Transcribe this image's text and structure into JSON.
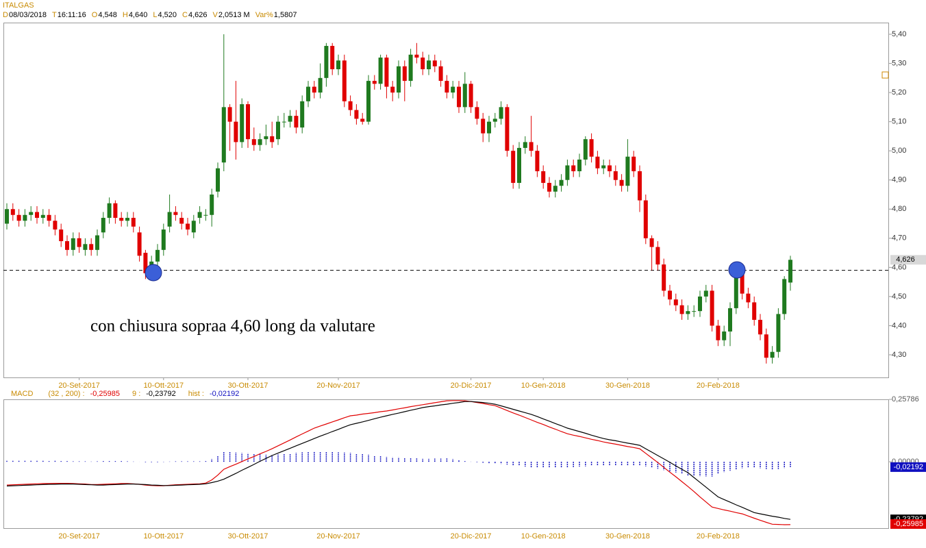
{
  "header": {
    "name": "ITALGAS",
    "fields": [
      {
        "label": "D",
        "value": "08/03/2018"
      },
      {
        "label": "T",
        "value": "16:11:16"
      },
      {
        "label": "O",
        "value": "4,548"
      },
      {
        "label": "H",
        "value": "4,640"
      },
      {
        "label": "L",
        "value": "4,520"
      },
      {
        "label": "C",
        "value": "4,626"
      },
      {
        "label": "V",
        "value": "2,0513 M"
      },
      {
        "label": "Var%",
        "value": "1,5807"
      }
    ]
  },
  "chart_data": [
    {
      "type": "candlestick",
      "up_color": "#1f7a1f",
      "down_color": "#e00000",
      "annotation": "con chiusura sopraa 4,60 long da valutare",
      "hline": 4.59,
      "ylim": [
        4.22,
        5.44
      ],
      "yticks": [
        {
          "value": 4.3,
          "label": "4,30"
        },
        {
          "value": 4.4,
          "label": "4,40"
        },
        {
          "value": 4.5,
          "label": "4,50"
        },
        {
          "value": 4.6,
          "label": "4,60"
        },
        {
          "value": 4.7,
          "label": "4,70"
        },
        {
          "value": 4.8,
          "label": "4,80"
        },
        {
          "value": 4.9,
          "label": "4,90"
        },
        {
          "value": 5.0,
          "label": "5,00"
        },
        {
          "value": 5.1,
          "label": "5,10"
        },
        {
          "value": 5.2,
          "label": "5,20"
        },
        {
          "value": 5.3,
          "label": "5,30"
        },
        {
          "value": 5.4,
          "label": "5,40"
        }
      ],
      "xticks": [
        {
          "value": 12,
          "label": "20-Set-2017"
        },
        {
          "value": 26,
          "label": "10-Ott-2017"
        },
        {
          "value": 40,
          "label": "30-Ott-2017"
        },
        {
          "value": 55,
          "label": "20-Nov-2017"
        },
        {
          "value": 77,
          "label": "20-Dic-2017"
        },
        {
          "value": 89,
          "label": "10-Gen-2018"
        },
        {
          "value": 103,
          "label": "30-Gen-2018"
        },
        {
          "value": 118,
          "label": "20-Feb-2018"
        }
      ],
      "open": [
        4.75,
        4.8,
        4.78,
        4.76,
        4.78,
        4.79,
        4.77,
        4.78,
        4.76,
        4.73,
        4.69,
        4.66,
        4.7,
        4.66,
        4.68,
        4.66,
        4.72,
        4.77,
        4.82,
        4.77,
        4.76,
        4.77,
        4.72,
        4.65,
        4.58,
        4.62,
        4.66,
        4.74,
        4.79,
        4.77,
        4.75,
        4.72,
        4.77,
        4.78,
        4.78,
        4.86,
        4.96,
        5.15,
        5.1,
        5.03,
        5.16,
        5.04,
        5.02,
        5.04,
        5.05,
        5.04,
        5.1,
        5.1,
        5.12,
        5.08,
        5.17,
        5.22,
        5.2,
        5.25,
        5.36,
        5.28,
        5.31,
        5.17,
        5.14,
        5.11,
        5.1,
        5.24,
        5.23,
        5.32,
        5.22,
        5.2,
        5.29,
        5.24,
        5.33,
        5.32,
        5.28,
        5.31,
        5.29,
        5.24,
        5.2,
        5.22,
        5.15,
        5.23,
        5.15,
        5.11,
        5.06,
        5.1,
        5.11,
        5.15,
        5.0,
        4.89,
        5.01,
        5.03,
        5.0,
        4.93,
        4.89,
        4.86,
        4.88,
        4.9,
        4.95,
        4.93,
        4.97,
        5.04,
        4.98,
        4.94,
        4.95,
        4.93,
        4.9,
        4.88,
        4.98,
        4.93,
        4.83,
        4.7,
        4.67,
        4.61,
        4.52,
        4.49,
        4.47,
        4.44,
        4.45,
        4.45,
        4.5,
        4.52,
        4.4,
        4.35,
        4.38,
        4.46,
        4.59,
        4.51,
        4.48,
        4.42,
        4.37,
        4.29,
        4.31,
        4.44,
        4.548
      ],
      "high": [
        4.82,
        4.82,
        4.8,
        4.8,
        4.81,
        4.81,
        4.8,
        4.8,
        4.78,
        4.75,
        4.71,
        4.72,
        4.72,
        4.7,
        4.7,
        4.73,
        4.79,
        4.84,
        4.83,
        4.79,
        4.79,
        4.79,
        4.74,
        4.66,
        4.64,
        4.68,
        4.75,
        4.85,
        4.81,
        4.79,
        4.77,
        4.78,
        4.81,
        4.8,
        4.87,
        4.96,
        5.4,
        5.16,
        5.24,
        5.18,
        5.17,
        5.08,
        5.06,
        5.09,
        5.1,
        5.12,
        5.13,
        5.14,
        5.14,
        5.19,
        5.24,
        5.24,
        5.3,
        5.37,
        5.37,
        5.33,
        5.33,
        5.19,
        5.16,
        5.13,
        5.26,
        5.26,
        5.33,
        5.33,
        5.24,
        5.31,
        5.31,
        5.35,
        5.37,
        5.34,
        5.33,
        5.33,
        5.31,
        5.26,
        5.24,
        5.24,
        5.27,
        5.24,
        5.17,
        5.13,
        5.12,
        5.13,
        5.17,
        5.16,
        5.02,
        5.03,
        5.05,
        5.12,
        5.02,
        4.95,
        4.91,
        4.9,
        4.92,
        4.97,
        4.97,
        4.99,
        5.05,
        5.06,
        5.0,
        4.97,
        4.97,
        4.95,
        4.92,
        5.04,
        5.0,
        4.95,
        4.85,
        4.71,
        4.69,
        4.63,
        4.54,
        4.51,
        4.49,
        4.47,
        4.47,
        4.52,
        4.54,
        4.54,
        4.42,
        4.4,
        4.48,
        4.6,
        4.6,
        4.53,
        4.5,
        4.44,
        4.39,
        4.33,
        4.46,
        4.57,
        4.64
      ],
      "low": [
        4.73,
        4.76,
        4.74,
        4.74,
        4.76,
        4.75,
        4.75,
        4.74,
        4.71,
        4.67,
        4.64,
        4.64,
        4.65,
        4.64,
        4.64,
        4.64,
        4.7,
        4.75,
        4.75,
        4.74,
        4.74,
        4.72,
        4.62,
        4.56,
        4.56,
        4.6,
        4.64,
        4.72,
        4.76,
        4.73,
        4.71,
        4.7,
        4.75,
        4.76,
        4.74,
        4.84,
        4.93,
        5.0,
        4.97,
        5.01,
        5.01,
        5.0,
        5.0,
        5.02,
        5.01,
        5.02,
        5.08,
        5.08,
        5.06,
        5.06,
        5.15,
        5.18,
        5.18,
        5.22,
        5.26,
        5.26,
        5.15,
        5.12,
        5.09,
        5.09,
        5.09,
        5.21,
        5.21,
        5.18,
        5.17,
        5.18,
        5.17,
        5.22,
        5.3,
        5.26,
        5.26,
        5.27,
        5.22,
        5.18,
        5.18,
        5.13,
        5.13,
        5.13,
        5.09,
        5.03,
        5.03,
        5.08,
        5.09,
        4.98,
        4.87,
        4.87,
        4.99,
        4.98,
        4.91,
        4.87,
        4.84,
        4.84,
        4.86,
        4.88,
        4.91,
        4.91,
        4.95,
        4.96,
        4.92,
        4.92,
        4.91,
        4.88,
        4.86,
        4.86,
        4.91,
        4.79,
        4.68,
        4.59,
        4.59,
        4.5,
        4.47,
        4.45,
        4.42,
        4.42,
        4.43,
        4.43,
        4.48,
        4.38,
        4.33,
        4.33,
        4.33,
        4.44,
        4.49,
        4.46,
        4.4,
        4.35,
        4.27,
        4.27,
        4.29,
        4.42,
        4.52
      ],
      "close": [
        4.8,
        4.78,
        4.76,
        4.78,
        4.79,
        4.77,
        4.78,
        4.76,
        4.73,
        4.69,
        4.66,
        4.7,
        4.67,
        4.68,
        4.66,
        4.71,
        4.77,
        4.82,
        4.77,
        4.76,
        4.77,
        4.74,
        4.64,
        4.58,
        4.62,
        4.66,
        4.73,
        4.79,
        4.78,
        4.75,
        4.73,
        4.76,
        4.79,
        4.78,
        4.85,
        4.94,
        5.15,
        5.1,
        5.03,
        5.16,
        5.04,
        5.02,
        5.04,
        5.05,
        5.03,
        5.1,
        5.1,
        5.12,
        5.08,
        5.17,
        5.22,
        5.2,
        5.25,
        5.36,
        5.28,
        5.31,
        5.17,
        5.14,
        5.11,
        5.1,
        5.24,
        5.23,
        5.32,
        5.22,
        5.2,
        5.29,
        5.24,
        5.33,
        5.32,
        5.28,
        5.31,
        5.29,
        5.24,
        5.2,
        5.22,
        5.15,
        5.23,
        5.15,
        5.11,
        5.06,
        5.1,
        5.11,
        5.15,
        5.0,
        4.89,
        5.01,
        5.03,
        5.0,
        4.93,
        4.89,
        4.86,
        4.88,
        4.9,
        4.95,
        4.93,
        4.97,
        5.04,
        4.98,
        4.94,
        4.95,
        4.93,
        4.9,
        4.88,
        4.98,
        4.93,
        4.83,
        4.7,
        4.67,
        4.61,
        4.52,
        4.49,
        4.47,
        4.44,
        4.45,
        4.45,
        4.5,
        4.52,
        4.4,
        4.35,
        4.38,
        4.46,
        4.59,
        4.51,
        4.48,
        4.42,
        4.37,
        4.29,
        4.31,
        4.44,
        4.56,
        4.626
      ]
    },
    {
      "type": "macd",
      "title": "MACD",
      "ylim": [
        -0.277,
        0.258
      ],
      "yticks": [
        {
          "value": 0.25786,
          "label": "0,25786"
        },
        {
          "value": 0,
          "label": "0,00000"
        }
      ],
      "series": [
        {
          "name": "(32 , 200) :",
          "color": "#e00000",
          "style": "line",
          "last_label": "-0,25985",
          "values": [
            -0.096,
            -0.095,
            -0.094,
            -0.093,
            -0.092,
            -0.091,
            -0.09,
            -0.09,
            -0.089,
            -0.089,
            -0.089,
            -0.09,
            -0.091,
            -0.092,
            -0.094,
            -0.094,
            -0.093,
            -0.092,
            -0.091,
            -0.09,
            -0.09,
            -0.091,
            -0.093,
            -0.096,
            -0.098,
            -0.099,
            -0.099,
            -0.097,
            -0.095,
            -0.094,
            -0.093,
            -0.092,
            -0.091,
            -0.088,
            -0.075,
            -0.055,
            -0.031,
            -0.02,
            -0.01,
            0.001,
            0.012,
            0.022,
            0.033,
            0.043,
            0.054,
            0.066,
            0.078,
            0.09,
            0.103,
            0.115,
            0.127,
            0.139,
            0.148,
            0.156,
            0.165,
            0.173,
            0.182,
            0.19,
            0.193,
            0.197,
            0.2,
            0.203,
            0.207,
            0.21,
            0.214,
            0.219,
            0.223,
            0.228,
            0.232,
            0.236,
            0.24,
            0.244,
            0.248,
            0.252,
            0.253,
            0.253,
            0.252,
            0.249,
            0.245,
            0.241,
            0.236,
            0.232,
            0.222,
            0.212,
            0.202,
            0.193,
            0.183,
            0.173,
            0.163,
            0.154,
            0.144,
            0.135,
            0.125,
            0.116,
            0.11,
            0.105,
            0.099,
            0.093,
            0.088,
            0.082,
            0.077,
            0.073,
            0.068,
            0.063,
            0.059,
            0.054,
            0.035,
            0.016,
            -0.003,
            -0.023,
            -0.043,
            -0.062,
            -0.082,
            -0.102,
            -0.123,
            -0.145,
            -0.166,
            -0.187,
            -0.193,
            -0.199,
            -0.204,
            -0.21,
            -0.215,
            -0.224,
            -0.233,
            -0.242,
            -0.25,
            -0.258,
            -0.259,
            -0.26,
            -0.25985
          ]
        },
        {
          "name": "9 :",
          "color": "#000000",
          "style": "line",
          "last_label": "-0,23792",
          "values": [
            -0.1,
            -0.099,
            -0.098,
            -0.097,
            -0.096,
            -0.095,
            -0.094,
            -0.093,
            -0.093,
            -0.092,
            -0.092,
            -0.092,
            -0.093,
            -0.094,
            -0.095,
            -0.096,
            -0.096,
            -0.095,
            -0.094,
            -0.093,
            -0.092,
            -0.092,
            -0.093,
            -0.094,
            -0.096,
            -0.097,
            -0.098,
            -0.098,
            -0.097,
            -0.096,
            -0.095,
            -0.094,
            -0.093,
            -0.091,
            -0.086,
            -0.08,
            -0.072,
            -0.06,
            -0.048,
            -0.035,
            -0.023,
            -0.011,
            0.002,
            0.014,
            0.026,
            0.036,
            0.046,
            0.056,
            0.066,
            0.076,
            0.086,
            0.096,
            0.106,
            0.115,
            0.125,
            0.134,
            0.144,
            0.153,
            0.159,
            0.165,
            0.171,
            0.178,
            0.184,
            0.19,
            0.196,
            0.201,
            0.207,
            0.213,
            0.218,
            0.224,
            0.228,
            0.231,
            0.235,
            0.238,
            0.242,
            0.245,
            0.249,
            0.249,
            0.247,
            0.245,
            0.242,
            0.238,
            0.231,
            0.224,
            0.217,
            0.21,
            0.203,
            0.196,
            0.187,
            0.177,
            0.168,
            0.158,
            0.149,
            0.139,
            0.132,
            0.125,
            0.118,
            0.11,
            0.103,
            0.096,
            0.091,
            0.087,
            0.082,
            0.077,
            0.073,
            0.068,
            0.054,
            0.04,
            0.026,
            0.012,
            -0.002,
            -0.017,
            -0.031,
            -0.045,
            -0.065,
            -0.085,
            -0.105,
            -0.125,
            -0.145,
            -0.156,
            -0.167,
            -0.178,
            -0.188,
            -0.199,
            -0.21,
            -0.215,
            -0.22,
            -0.225,
            -0.229,
            -0.234,
            -0.23792
          ]
        },
        {
          "name": "hist :",
          "color": "#1010c0",
          "style": "histogram",
          "last_label": "-0,02192",
          "values": [
            0.004,
            0.004,
            0.004,
            0.004,
            0.004,
            0.004,
            0.004,
            0.003,
            0.004,
            0.003,
            0.003,
            0.002,
            0.002,
            0.002,
            0.001,
            0.002,
            0.003,
            0.003,
            0.003,
            0.003,
            0.002,
            0.001,
            0,
            -0.002,
            -0.002,
            -0.002,
            -0.001,
            0.001,
            0.002,
            0.002,
            0.002,
            0.002,
            0.002,
            0.003,
            0.011,
            0.025,
            0.041,
            0.04,
            0.038,
            0.036,
            0.035,
            0.033,
            0.031,
            0.029,
            0.028,
            0.03,
            0.032,
            0.034,
            0.037,
            0.039,
            0.041,
            0.043,
            0.042,
            0.041,
            0.04,
            0.039,
            0.038,
            0.037,
            0.034,
            0.032,
            0.029,
            0.025,
            0.023,
            0.02,
            0.018,
            0.018,
            0.016,
            0.015,
            0.014,
            0.012,
            0.012,
            0.013,
            0.013,
            0.014,
            0.011,
            0.008,
            0.003,
            0,
            -0.002,
            -0.004,
            -0.006,
            -0.006,
            -0.009,
            -0.012,
            -0.015,
            -0.017,
            -0.02,
            -0.023,
            -0.024,
            -0.023,
            -0.024,
            -0.023,
            -0.024,
            -0.023,
            -0.022,
            -0.02,
            -0.019,
            -0.017,
            -0.015,
            -0.014,
            -0.014,
            -0.014,
            -0.014,
            -0.014,
            -0.014,
            -0.014,
            -0.019,
            -0.024,
            -0.029,
            -0.035,
            -0.041,
            -0.045,
            -0.051,
            -0.057,
            -0.058,
            -0.06,
            -0.061,
            -0.062,
            -0.048,
            -0.043,
            -0.037,
            -0.032,
            -0.027,
            -0.025,
            -0.023,
            -0.027,
            -0.03,
            -0.033,
            -0.03,
            -0.026,
            -0.02192
          ]
        }
      ]
    }
  ]
}
